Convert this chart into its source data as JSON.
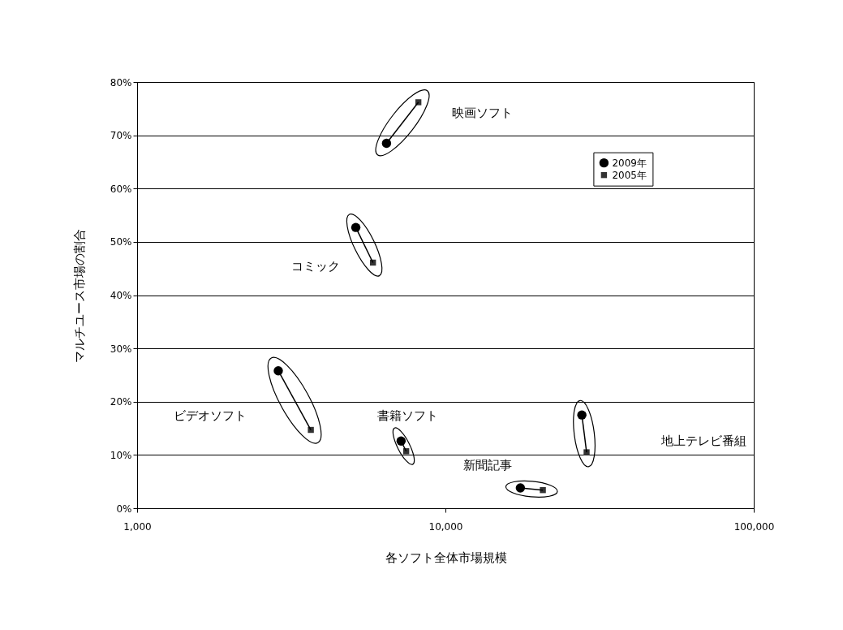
{
  "chart_data": {
    "type": "scatter",
    "xlabel": "各ソフト全体市場規模",
    "ylabel": "マルチユース市場の割合",
    "log": "x",
    "xlim": [
      1000,
      100000
    ],
    "xticks": [
      {
        "value": 1000,
        "label": "1,000"
      },
      {
        "value": 10000,
        "label": "10,000"
      },
      {
        "value": 100000,
        "label": "100,000"
      }
    ],
    "ylim": [
      0,
      0.8
    ],
    "yticks": [
      {
        "value": 0,
        "label": "0%"
      },
      {
        "value": 0.1,
        "label": "10%"
      },
      {
        "value": 0.2,
        "label": "20%"
      },
      {
        "value": 0.3,
        "label": "30%"
      },
      {
        "value": 0.4,
        "label": "40%"
      },
      {
        "value": 0.5,
        "label": "50%"
      },
      {
        "value": 0.6,
        "label": "60%"
      },
      {
        "value": 0.7,
        "label": "70%"
      },
      {
        "value": 0.8,
        "label": "80%"
      }
    ],
    "grid": "y",
    "legend": "top right",
    "series": [
      {
        "name": "2009年",
        "color": "#000000",
        "marker": "circle",
        "x": [
          6440,
          5120,
          2870,
          7180,
          27700,
          17500
        ],
        "values": [
          0.685,
          0.527,
          0.258,
          0.126,
          0.175,
          0.038
        ]
      },
      {
        "name": "2005年",
        "color": "#333333",
        "marker": "square",
        "x": [
          8170,
          5820,
          3660,
          7460,
          28700,
          20700
        ],
        "values": [
          0.762,
          0.461,
          0.147,
          0.107,
          0.105,
          0.034
        ]
      }
    ],
    "annotations": [
      "映画ソフト",
      "コミック",
      "ビデオソフト",
      "書籍ソフト",
      "地上テレビ番組",
      "新聞記事"
    ]
  }
}
